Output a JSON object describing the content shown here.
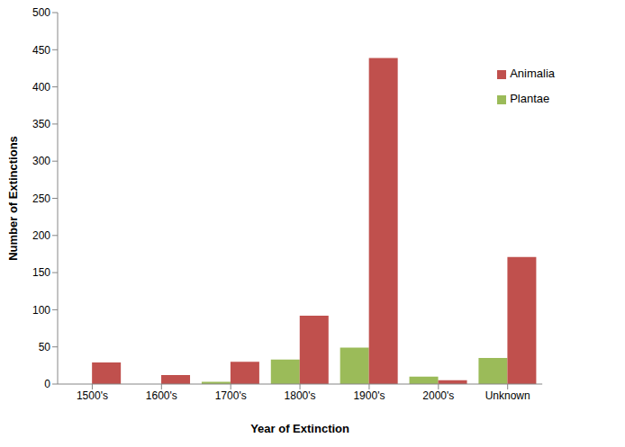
{
  "chart_data": {
    "type": "bar",
    "x_label": "Year of Extinction",
    "y_label": "Number of Extinctions",
    "categories": [
      "1500's",
      "1600's",
      "1700's",
      "1800's",
      "1900's",
      "2000's",
      "Unknown"
    ],
    "series": [
      {
        "name": "Plantae",
        "color": "#9bbb59",
        "values": [
          0,
          0,
          3,
          33,
          49,
          10,
          35
        ]
      },
      {
        "name": "Animalia",
        "color": "#c0504d",
        "values": [
          29,
          12,
          30,
          92,
          439,
          5,
          171
        ]
      }
    ],
    "ylim": [
      0,
      500
    ],
    "yticks": [
      0,
      50,
      100,
      150,
      200,
      250,
      300,
      350,
      400,
      450,
      500
    ],
    "grid": false,
    "legend": "upper right"
  }
}
